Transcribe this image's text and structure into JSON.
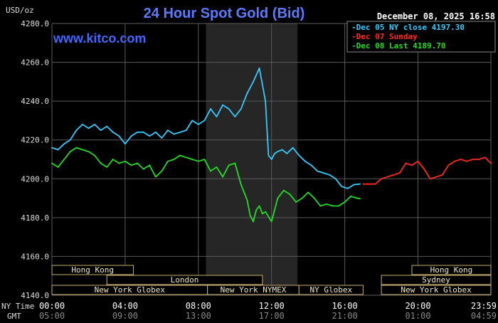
{
  "chart_data": {
    "type": "line",
    "title": "24 Hour Spot Gold (Bid)",
    "unit_label": "USD/oz",
    "timestamp": "December 08, 2025 16:58",
    "watermark": "www.kitco.com",
    "ylim": [
      4140,
      4280
    ],
    "y_ticks": [
      "4140.0",
      "4160.0",
      "4180.0",
      "4200.0",
      "4220.0",
      "4240.0",
      "4260.0",
      "4280.0"
    ],
    "x_range_minutes": [
      0,
      1439
    ],
    "x_ticks_ny": [
      "00:00",
      "04:00",
      "08:00",
      "12:00",
      "16:00",
      "20:00",
      "23:59"
    ],
    "x_ticks_gmt": [
      "05:00",
      "09:00",
      "13:00",
      "17:00",
      "21:00",
      "01:00",
      "04:59"
    ],
    "row_label_ny": "NY Time",
    "row_label_gmt": "GMT",
    "grid": true,
    "legend": [
      {
        "label": "Dec 05 NY close 4197.30",
        "color": "#33ccff"
      },
      {
        "label": "Dec 07 Sunday",
        "color": "#ff2a1a"
      },
      {
        "label": "Dec 08 Last 4189.70",
        "color": "#22dd22"
      }
    ],
    "sessions": [
      {
        "label": "Hong Kong",
        "row": 0,
        "start": 0,
        "end": 267
      },
      {
        "label": "London",
        "row": 1,
        "start": 180,
        "end": 690
      },
      {
        "label": "New York Globex",
        "row": 2,
        "start": 0,
        "end": 510
      },
      {
        "label": "New York NYMEX",
        "row": 2,
        "start": 510,
        "end": 810
      },
      {
        "label": "NY Globex",
        "row": 2,
        "start": 810,
        "end": 1020
      },
      {
        "label": "Hong Kong",
        "row": 0,
        "start": 1180,
        "end": 1439
      },
      {
        "label": "Sydney",
        "row": 1,
        "start": 1080,
        "end": 1439
      },
      {
        "label": "New York Globex",
        "row": 2,
        "start": 1080,
        "end": 1439
      }
    ],
    "shaded_window": [
      505,
      805
    ],
    "series": [
      {
        "name": "Dec 05 NY close 4197.30",
        "color": "#33ccff",
        "x": [
          0,
          20,
          40,
          60,
          80,
          100,
          120,
          140,
          160,
          180,
          200,
          220,
          240,
          260,
          280,
          300,
          320,
          340,
          360,
          380,
          400,
          420,
          440,
          460,
          480,
          500,
          520,
          540,
          560,
          580,
          600,
          620,
          640,
          660,
          680,
          700,
          710,
          720,
          730,
          740,
          755,
          770,
          790,
          810,
          830,
          850,
          870,
          890,
          910,
          930,
          950,
          970,
          990,
          1010
        ],
        "y": [
          4216,
          4215,
          4218,
          4220,
          4225,
          4228,
          4226,
          4228,
          4225,
          4227,
          4224,
          4222,
          4218,
          4222,
          4224,
          4224,
          4222,
          4224,
          4221,
          4225,
          4223,
          4224,
          4225,
          4230,
          4228,
          4230,
          4236,
          4232,
          4238,
          4236,
          4232,
          4236,
          4244,
          4250,
          4257,
          4240,
          4212,
          4210,
          4213,
          4214,
          4215,
          4213,
          4216,
          4212,
          4209,
          4207,
          4204,
          4203,
          4202,
          4200,
          4196,
          4195,
          4197,
          4197.3
        ]
      },
      {
        "name": "Dec 07 Sunday",
        "color": "#ff2a1a",
        "x": [
          1020,
          1060,
          1080,
          1100,
          1120,
          1140,
          1160,
          1180,
          1200,
          1220,
          1240,
          1260,
          1280,
          1300,
          1320,
          1340,
          1360,
          1380,
          1400,
          1420,
          1439
        ],
        "y": [
          4197.3,
          4197.3,
          4200,
          4201,
          4202,
          4203,
          4208,
          4207,
          4209,
          4205,
          4200,
          4201,
          4202,
          4207,
          4209,
          4210,
          4209,
          4210,
          4210,
          4211,
          4208
        ]
      },
      {
        "name": "Dec 08 Last 4189.70",
        "color": "#22dd22",
        "x": [
          0,
          20,
          40,
          60,
          80,
          100,
          120,
          140,
          160,
          180,
          200,
          220,
          240,
          260,
          280,
          300,
          320,
          340,
          360,
          380,
          400,
          420,
          440,
          460,
          480,
          500,
          520,
          540,
          560,
          580,
          600,
          620,
          640,
          650,
          660,
          670,
          680,
          690,
          700,
          720,
          740,
          760,
          780,
          800,
          820,
          840,
          860,
          880,
          900,
          920,
          940,
          960,
          980,
          1000,
          1010
        ],
        "y": [
          4208,
          4206,
          4210,
          4214,
          4216,
          4215,
          4214,
          4212,
          4208,
          4206,
          4210,
          4208,
          4209,
          4207,
          4208,
          4205,
          4207,
          4201,
          4204,
          4209,
          4210,
          4212,
          4211,
          4210,
          4209,
          4210,
          4204,
          4206,
          4201,
          4207,
          4208,
          4197,
          4189,
          4181,
          4178,
          4184,
          4186,
          4182,
          4183,
          4178,
          4190,
          4194,
          4192,
          4188,
          4190,
          4193,
          4190,
          4186,
          4187,
          4186,
          4186,
          4188,
          4191,
          4190,
          4189.7
        ]
      }
    ]
  }
}
